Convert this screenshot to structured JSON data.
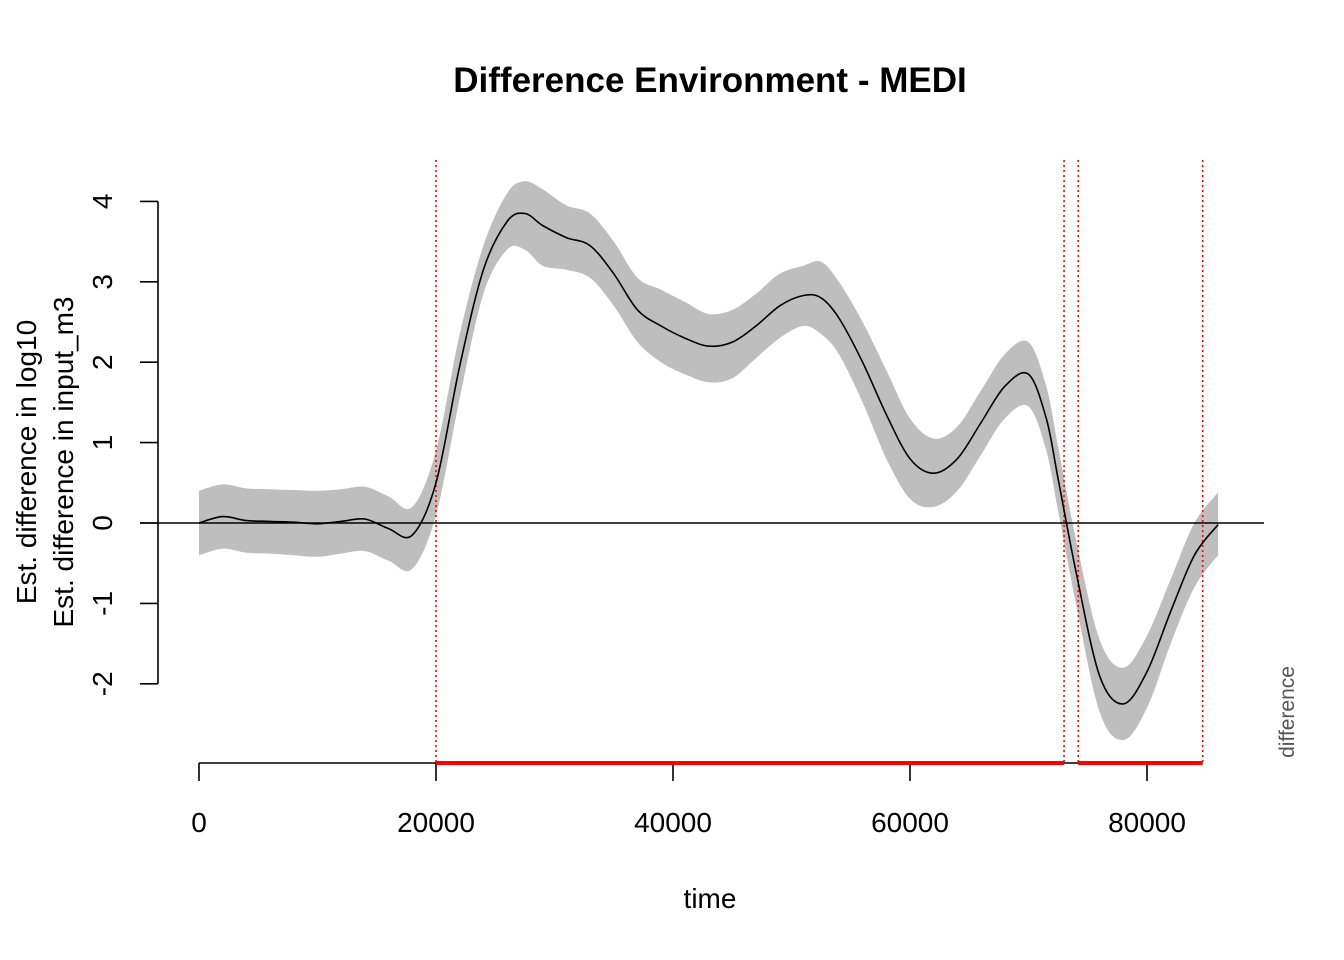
{
  "chart_data": {
    "type": "line",
    "title": "Difference Environment - MEDI",
    "xlabel": "time",
    "ylabel_line1": "Est. difference in log10",
    "ylabel_line2": "Est. difference in input_m3",
    "side_label": "difference",
    "xlim": [
      0,
      90000
    ],
    "ylim": [
      -2,
      4
    ],
    "x_ticks": [
      0,
      20000,
      40000,
      60000,
      80000
    ],
    "y_ticks": [
      -2,
      -1,
      0,
      1,
      2,
      3,
      4
    ],
    "grid": false,
    "colors": {
      "line": "#000000",
      "band": "#bebebe",
      "significant": "#ff0000"
    },
    "series": [
      {
        "x": [
          0,
          2000,
          4000,
          6000,
          8000,
          10000,
          12000,
          14000,
          16000,
          18000,
          20000,
          22000,
          24000,
          26000,
          27500,
          29000,
          31000,
          33000,
          35000,
          37000,
          39000,
          41000,
          43000,
          45000,
          47000,
          49000,
          51000,
          52500,
          54000,
          56000,
          58000,
          60000,
          62000,
          64000,
          66000,
          68000,
          70000,
          71500,
          72500,
          74000,
          76000,
          78000,
          80000,
          82000,
          84000,
          86000
        ],
        "y": [
          0.0,
          0.08,
          0.03,
          0.02,
          0.01,
          -0.01,
          0.02,
          0.05,
          -0.07,
          -0.15,
          0.5,
          1.95,
          3.15,
          3.75,
          3.85,
          3.7,
          3.55,
          3.45,
          3.1,
          2.65,
          2.45,
          2.3,
          2.2,
          2.25,
          2.45,
          2.7,
          2.83,
          2.8,
          2.55,
          2.0,
          1.35,
          0.8,
          0.62,
          0.8,
          1.25,
          1.7,
          1.85,
          1.3,
          0.55,
          -0.6,
          -1.9,
          -2.25,
          -1.85,
          -1.1,
          -0.4,
          -0.02
        ],
        "lower": [
          -0.4,
          -0.32,
          -0.37,
          -0.38,
          -0.4,
          -0.42,
          -0.38,
          -0.35,
          -0.47,
          -0.57,
          0.1,
          1.55,
          2.85,
          3.4,
          3.4,
          3.2,
          3.15,
          3.05,
          2.7,
          2.25,
          2.0,
          1.85,
          1.75,
          1.8,
          2.05,
          2.3,
          2.45,
          2.35,
          2.1,
          1.5,
          0.8,
          0.3,
          0.2,
          0.4,
          0.85,
          1.3,
          1.45,
          0.9,
          0.15,
          -1.0,
          -2.35,
          -2.7,
          -2.3,
          -1.5,
          -0.8,
          -0.4
        ],
        "upper": [
          0.4,
          0.48,
          0.43,
          0.42,
          0.41,
          0.4,
          0.42,
          0.45,
          0.33,
          0.2,
          0.9,
          2.35,
          3.45,
          4.1,
          4.25,
          4.15,
          3.95,
          3.85,
          3.5,
          3.05,
          2.9,
          2.75,
          2.6,
          2.65,
          2.85,
          3.1,
          3.2,
          3.25,
          3.0,
          2.5,
          1.9,
          1.3,
          1.05,
          1.2,
          1.65,
          2.1,
          2.25,
          1.7,
          0.95,
          -0.2,
          -1.45,
          -1.8,
          -1.4,
          -0.7,
          0.0,
          0.38
        ]
      }
    ],
    "significant_intervals": [
      [
        20000,
        73000
      ],
      [
        74200,
        84700
      ]
    ]
  }
}
